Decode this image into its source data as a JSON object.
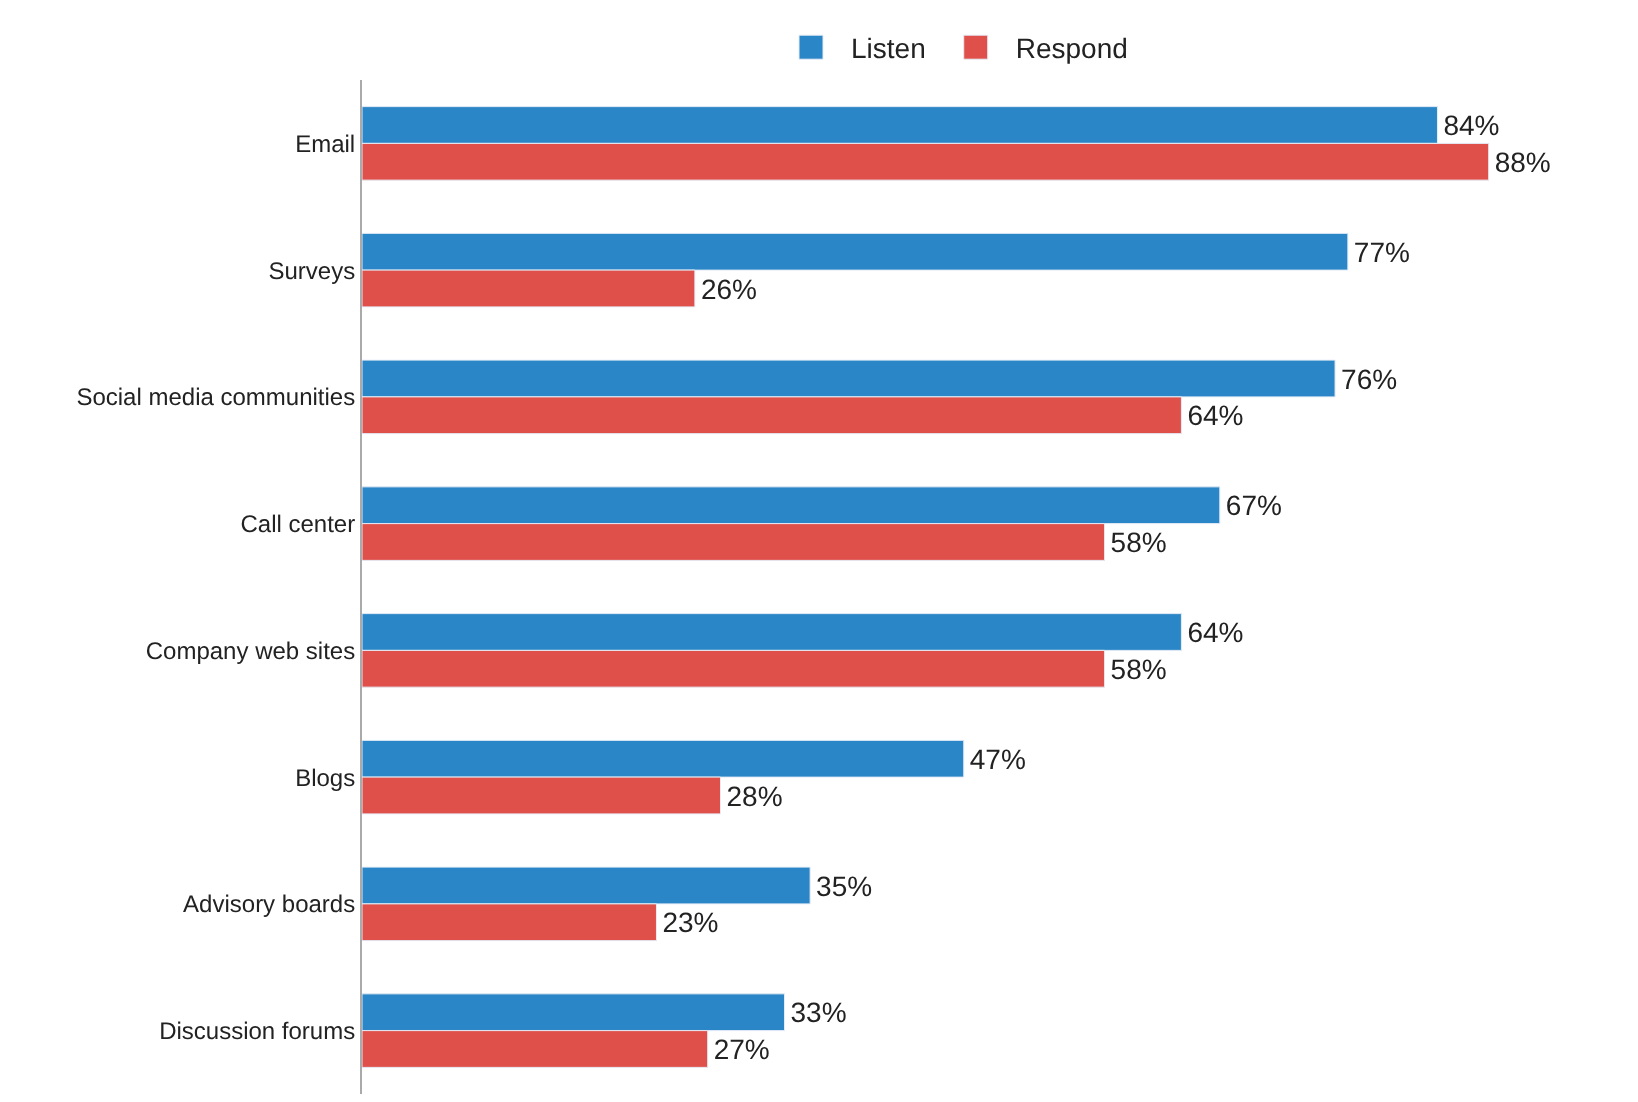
{
  "chart_data": {
    "type": "bar",
    "orientation": "horizontal",
    "legend": "top",
    "categories": [
      "Email",
      "Surveys",
      "Social media communities",
      "Call center",
      "Company web sites",
      "Blogs",
      "Advisory boards",
      "Discussion forums"
    ],
    "series": [
      {
        "name": "Listen",
        "color": "#2a86c6",
        "values": [
          84,
          77,
          76,
          67,
          64,
          47,
          35,
          33
        ],
        "value_labels": [
          "84%",
          "77%",
          "76%",
          "67%",
          "64%",
          "47%",
          "35%",
          "33%"
        ]
      },
      {
        "name": "Respond",
        "color": "#e0504a",
        "values": [
          88,
          26,
          64,
          58,
          58,
          28,
          23,
          27
        ],
        "value_labels": [
          "88%",
          "26%",
          "64%",
          "58%",
          "58%",
          "28%",
          "23%",
          "27%"
        ]
      }
    ]
  }
}
